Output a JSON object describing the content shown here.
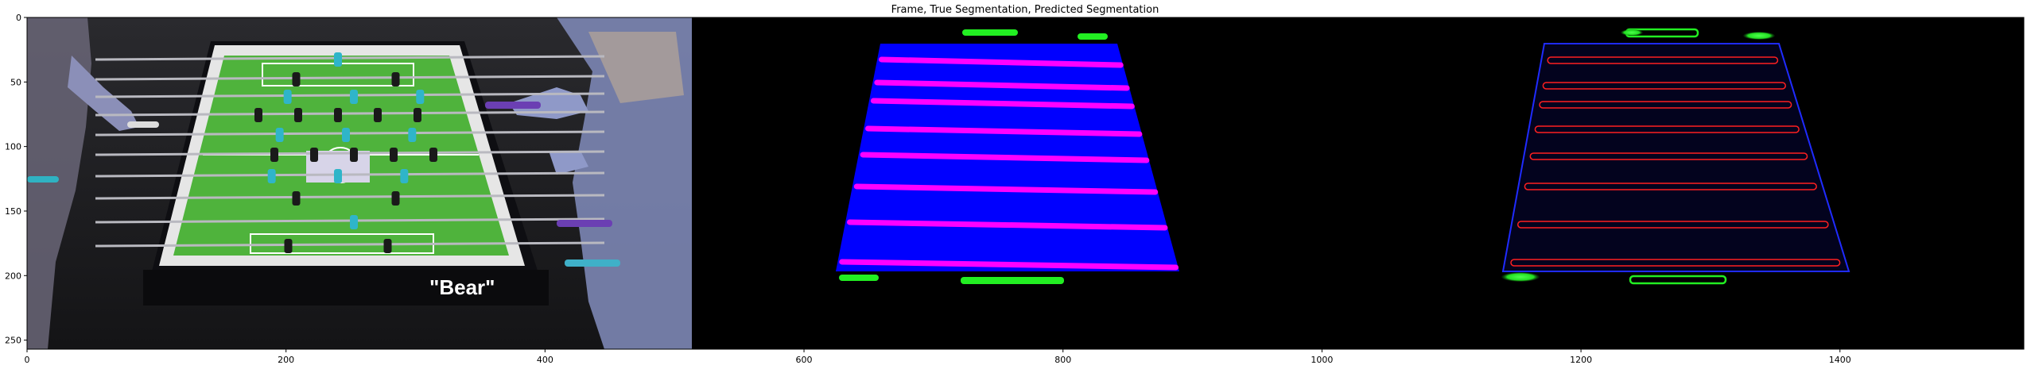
{
  "figure": {
    "title": "Frame, True Segmentation, Predicted Segmentation",
    "x_ticks": [
      "0",
      "200",
      "400",
      "600",
      "800",
      "1000",
      "1200",
      "1400"
    ],
    "y_ticks": [
      "0",
      "50",
      "100",
      "150",
      "200",
      "250"
    ],
    "image_extent": {
      "x_max": 1542,
      "y_max": 257
    }
  },
  "frame_panel": {
    "brand_text": "\"Bear\""
  },
  "colors": {
    "background": "#000000",
    "table_green": "#4fb33c",
    "true_table": "#0000ff",
    "true_rods": "#ff00ff",
    "blobs": "#22ff22",
    "pred_outline": "#1f2bff",
    "pred_rods": "#ff2020"
  }
}
